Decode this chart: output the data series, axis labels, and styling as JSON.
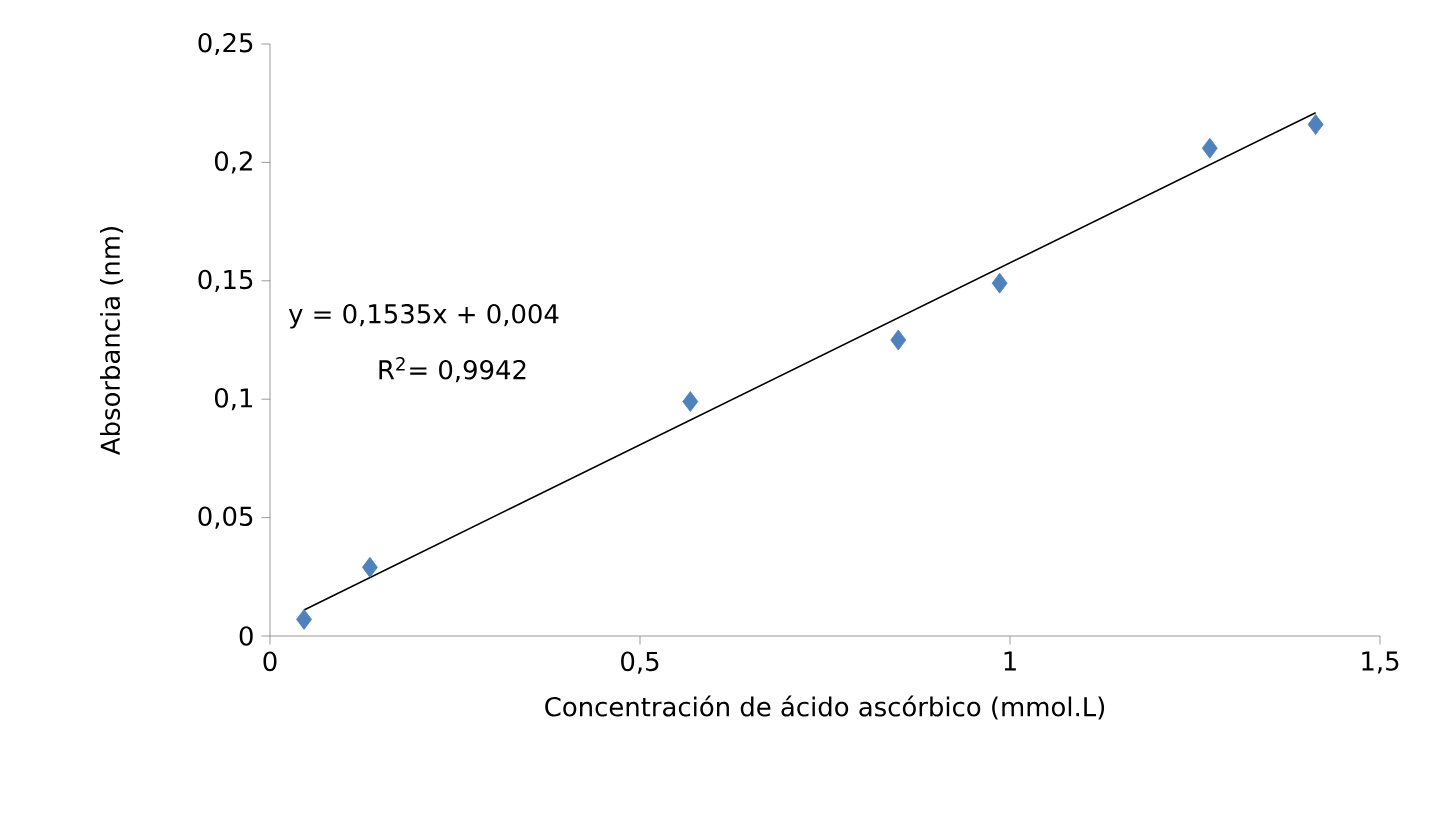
{
  "chart_data": {
    "type": "scatter",
    "xlabel": "Concentración de ácido ascórbico (mmol.L)",
    "ylabel": "Absorbancia (nm)",
    "x": [
      0.046,
      0.135,
      0.568,
      0.849,
      0.986,
      1.27,
      1.413
    ],
    "series": [
      {
        "color": "#4f81bd",
        "marker": "diamond",
        "values": [
          0.007,
          0.029,
          0.099,
          0.125,
          0.149,
          0.206,
          0.216
        ]
      },
      {
        "type": "line",
        "color": "#000000",
        "marker": "none",
        "line_style": "solid",
        "x": [
          0.046,
          1.413
        ],
        "values": [
          0.011,
          0.221
        ]
      }
    ],
    "xlim": [
      0,
      1.5
    ],
    "ylim": [
      0,
      0.25
    ],
    "xticks": [
      0,
      {
        "value": 0.5,
        "label": "0,5"
      },
      1,
      {
        "value": 1.5,
        "label": "1,5"
      }
    ],
    "yticks": [
      0,
      {
        "value": 0.05,
        "label": "0,05"
      },
      {
        "value": 0.1,
        "label": "0,1"
      },
      {
        "value": 0.15,
        "label": "0,15"
      },
      {
        "value": 0.2,
        "label": "0,2"
      },
      {
        "value": 0.25,
        "label": "0,25"
      }
    ],
    "grid": false,
    "annotations": [
      "y = 0,1535x + 0,004",
      "R$^{2}$= 0,9942"
    ]
  }
}
